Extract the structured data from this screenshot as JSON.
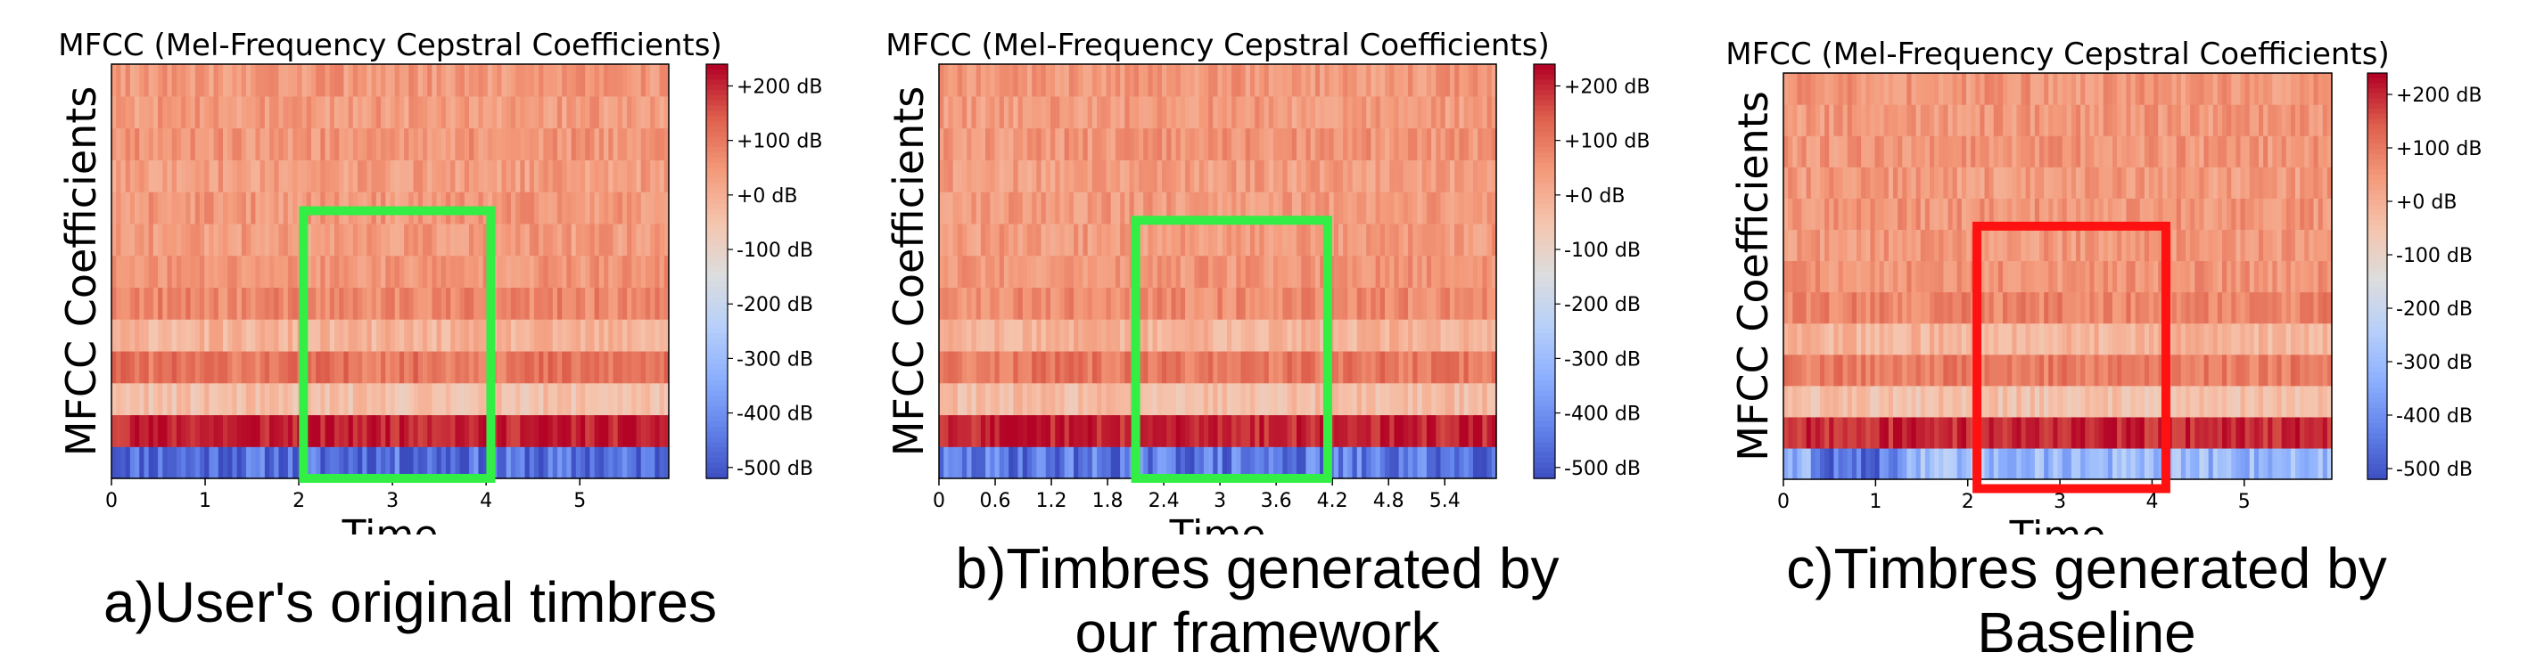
{
  "chart_data": [
    {
      "type": "heatmap",
      "title": "MFCC (Mel-Frequency Cepstral Coefficients)",
      "ylabel": "MFCC Coefficients",
      "xlabel": "Time",
      "x_ticks": [
        "0",
        "1",
        "2",
        "3",
        "4",
        "5"
      ],
      "x_tick_values": [
        0,
        1,
        2,
        3,
        4,
        5
      ],
      "xlim": [
        0,
        5.95
      ],
      "colorbar": {
        "unit": "dB",
        "ticks": [
          "+200 dB",
          "+100 dB",
          "+0 dB",
          "-100 dB",
          "-200 dB",
          "-300 dB",
          "-400 dB",
          "-500 dB"
        ],
        "tick_values": [
          200,
          100,
          0,
          -100,
          -200,
          -300,
          -400,
          -500
        ],
        "range": [
          -520,
          240
        ],
        "colormap": "coolwarm"
      },
      "num_coefficients": 13,
      "coefficient_levels_db": [
        -460,
        215,
        -40,
        110,
        -10,
        80,
        55,
        45,
        50,
        40,
        55,
        45,
        50
      ],
      "highlight_box": {
        "x_start": 2.05,
        "x_end": 4.05,
        "coef_low": -0.5,
        "coef_high": 7.9,
        "color": "#33ee44"
      },
      "caption": [
        "a)User's original timbres"
      ]
    },
    {
      "type": "heatmap",
      "title": "MFCC (Mel-Frequency Cepstral Coefficients)",
      "ylabel": "MFCC Coefficients",
      "xlabel": "Time",
      "x_ticks": [
        "0",
        "0.6",
        "1.2",
        "1.8",
        "2.4",
        "3",
        "3.6",
        "4.2",
        "4.8",
        "5.4"
      ],
      "x_tick_values": [
        0,
        0.6,
        1.2,
        1.8,
        2.4,
        3.0,
        3.6,
        4.2,
        4.8,
        5.4
      ],
      "xlim": [
        0,
        5.95
      ],
      "colorbar": {
        "unit": "dB",
        "ticks": [
          "+200 dB",
          "+100 dB",
          "+0 dB",
          "-100 dB",
          "-200 dB",
          "-300 dB",
          "-400 dB",
          "-500 dB"
        ],
        "tick_values": [
          200,
          100,
          0,
          -100,
          -200,
          -300,
          -400,
          -500
        ],
        "range": [
          -520,
          240
        ],
        "colormap": "coolwarm"
      },
      "num_coefficients": 13,
      "coefficient_levels_db": [
        -440,
        210,
        -30,
        105,
        -5,
        75,
        55,
        45,
        50,
        40,
        55,
        45,
        50
      ],
      "highlight_box": {
        "x_start": 2.1,
        "x_end": 4.15,
        "coef_low": -0.5,
        "coef_high": 7.6,
        "color": "#33ee44"
      },
      "caption": [
        "b)Timbres generated by",
        "our framework"
      ]
    },
    {
      "type": "heatmap",
      "title": "MFCC (Mel-Frequency Cepstral Coefficients)",
      "ylabel": "MFCC Coefficients",
      "xlabel": "Time",
      "x_ticks": [
        "0",
        "1",
        "2",
        "3",
        "4",
        "5"
      ],
      "x_tick_values": [
        0,
        1,
        2,
        3,
        4,
        5
      ],
      "xlim": [
        0,
        5.95
      ],
      "colorbar": {
        "unit": "dB",
        "ticks": [
          "+200 dB",
          "+100 dB",
          "+0 dB",
          "-100 dB",
          "-200 dB",
          "-300 dB",
          "-400 dB",
          "-500 dB"
        ],
        "tick_values": [
          200,
          100,
          0,
          -100,
          -200,
          -300,
          -400,
          -500
        ],
        "range": [
          -520,
          240
        ],
        "colormap": "coolwarm"
      },
      "num_coefficients": 13,
      "coefficient_levels_db": [
        -300,
        205,
        -40,
        100,
        -10,
        85,
        60,
        50,
        55,
        45,
        55,
        50,
        55
      ],
      "highlight_box": {
        "x_start": 2.1,
        "x_end": 4.15,
        "coef_low": -0.8,
        "coef_high": 7.6,
        "color": "#ff1111"
      },
      "caption": [
        "c)Timbres generated by",
        "Baseline"
      ]
    }
  ]
}
